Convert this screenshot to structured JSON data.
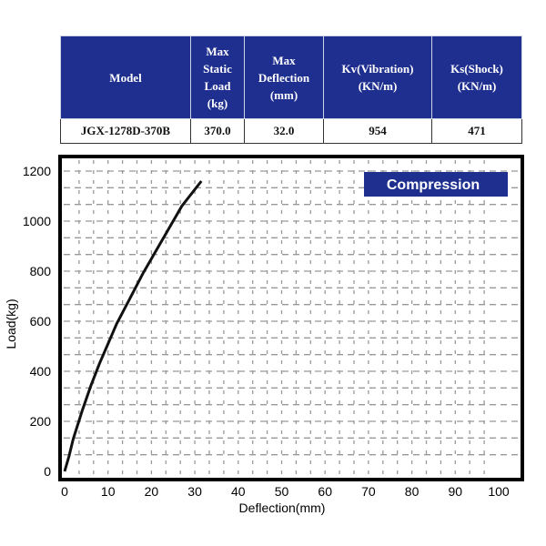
{
  "table": {
    "headers": [
      "Model",
      "Max Static Load (kg)",
      "Max Deflection (mm)",
      "Kv(Vibration) (KN/m)",
      "Ks(Shock) (KN/m)"
    ],
    "row": [
      "JGX-1278D-370B",
      "370.0",
      "32.0",
      "954",
      "471"
    ]
  },
  "chart_data": {
    "type": "line",
    "title": "",
    "legend_label": "Compression",
    "xlabel": "Deflection(mm)",
    "ylabel": "Load(kg)",
    "xlim": [
      0,
      100
    ],
    "ylim": [
      0,
      1200
    ],
    "xticks": [
      "0",
      "10",
      "20",
      "30",
      "40",
      "50",
      "60",
      "70",
      "80",
      "90",
      "100"
    ],
    "yticks": [
      "0",
      "200",
      "400",
      "600",
      "800",
      "1000",
      "1200"
    ],
    "grid": true,
    "series": [
      {
        "name": "Compression",
        "x": [
          0,
          1,
          2,
          4,
          6,
          8,
          10,
          12,
          15,
          18,
          21,
          24,
          27,
          31.5
        ],
        "y": [
          0,
          60,
          130,
          240,
          340,
          430,
          510,
          590,
          690,
          790,
          880,
          970,
          1060,
          1160
        ]
      }
    ],
    "colors": {
      "line": "#111111",
      "legend_bg": "#1f2f8f",
      "header_bg": "#1f2f8f"
    }
  }
}
